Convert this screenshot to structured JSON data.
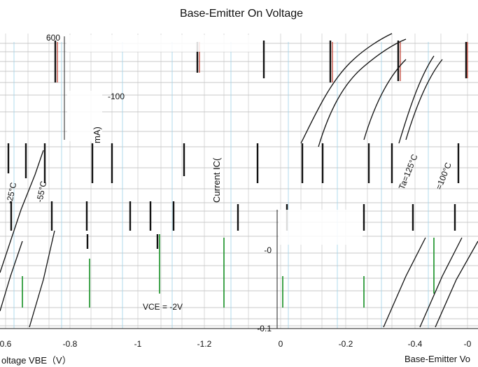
{
  "chart_data": [
    {
      "type": "line",
      "title": "Base-Emitter On Voltage",
      "xlabel": "oltage  VBE（V）",
      "ylabel": "mA)",
      "x_ticks": [
        "0.6",
        "-0.8",
        "-1",
        "-1.2"
      ],
      "y_ticks": [
        "600",
        "-100"
      ],
      "x_range": [
        -0.6,
        -1.2
      ],
      "annotations": [
        "-25°C",
        "-55°C",
        "VCE = -2V"
      ],
      "series": [
        {
          "name": "-25°C",
          "x": [
            -0.6,
            -0.64,
            -0.68,
            -0.72
          ],
          "y": [
            0.05,
            0.2,
            0.6,
            1.0
          ]
        },
        {
          "name": "-55°C",
          "x": [
            -0.62,
            -0.66,
            -0.7,
            -0.74
          ],
          "y": [
            0.05,
            0.2,
            0.6,
            1.0
          ]
        }
      ]
    },
    {
      "type": "line",
      "title": "",
      "xlabel": "Base-Emitter Vo",
      "ylabel": "Current  IC(",
      "x_ticks": [
        "0",
        "-0.2",
        "-0.4",
        "-0"
      ],
      "y_ticks": [
        "-0",
        "-0.1"
      ],
      "x_range": [
        0,
        -0.6
      ],
      "annotations": [
        "Ta=125°C",
        "=100°C"
      ],
      "series": [
        {
          "name": "Ta=125°C",
          "x": [
            -0.1,
            -0.2,
            -0.3,
            -0.4
          ],
          "y": [
            0.05,
            0.3,
            0.7,
            1.0
          ]
        },
        {
          "name": "=100°C",
          "x": [
            -0.2,
            -0.3,
            -0.4,
            -0.5
          ],
          "y": [
            0.05,
            0.3,
            0.7,
            1.0
          ]
        }
      ]
    }
  ]
}
